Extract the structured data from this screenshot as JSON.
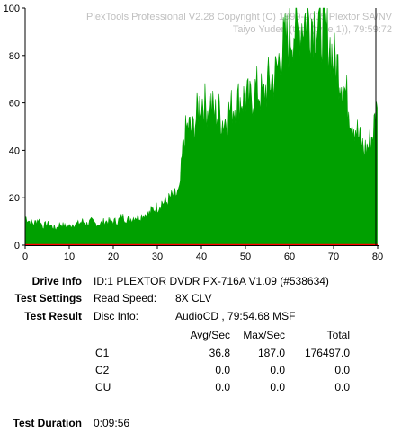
{
  "chart_data": {
    "type": "area",
    "title": "PlexTools Professional V2.28 Copyright (C) 1999-2005 Plextor SA/NV",
    "subtitle": "Taiyo Yuden (typ. (type 1)), 79:59:72",
    "x_ticks": [
      "0",
      "10",
      "20",
      "30",
      "40",
      "50",
      "60",
      "70",
      "80"
    ],
    "y_ticks": [
      "0",
      "20",
      "40",
      "60",
      "80",
      "100"
    ],
    "xlim": [
      0,
      80
    ],
    "ylim": [
      0,
      100
    ],
    "grid": false,
    "series": [
      {
        "name": "C1",
        "color": "#00a000",
        "x": [
          0,
          1,
          2,
          3,
          4,
          5,
          6,
          7,
          8,
          9,
          10,
          11,
          12,
          13,
          14,
          15,
          16,
          17,
          18,
          19,
          20,
          21,
          22,
          23,
          24,
          25,
          26,
          27,
          28,
          29,
          30,
          31,
          32,
          33,
          34,
          35,
          36,
          37,
          38,
          39,
          40,
          41,
          42,
          43,
          44,
          45,
          46,
          47,
          48,
          49,
          50,
          51,
          52,
          53,
          54,
          55,
          56,
          57,
          58,
          59,
          60,
          61,
          62,
          63,
          64,
          65,
          66,
          67,
          68,
          69,
          70,
          71,
          72,
          73,
          74,
          75,
          76,
          77,
          78,
          79,
          79.9
        ],
        "y": [
          12,
          10,
          9,
          11,
          8,
          9,
          8,
          7,
          9,
          8,
          8,
          9,
          9,
          10,
          9,
          10,
          9,
          9,
          10,
          10,
          10,
          10,
          12,
          11,
          11,
          12,
          12,
          13,
          13,
          15,
          16,
          18,
          18,
          20,
          21,
          22,
          45,
          50,
          48,
          55,
          62,
          58,
          60,
          55,
          56,
          52,
          55,
          58,
          60,
          62,
          62,
          60,
          65,
          65,
          62,
          68,
          70,
          72,
          82,
          85,
          88,
          92,
          90,
          95,
          96,
          96,
          94,
          92,
          90,
          86,
          78,
          75,
          70,
          62,
          55,
          50,
          44,
          40,
          42,
          48,
          58
        ]
      },
      {
        "name": "C2",
        "color": "#ff0000",
        "x": [
          0,
          80
        ],
        "y": [
          0,
          0
        ]
      }
    ],
    "end_marker_x": 80
  },
  "info": {
    "drive_label": "Drive Info",
    "drive_value": "ID:1 PLEXTOR DVDR PX-716A V1.09 (#538634)",
    "settings_label": "Test Settings",
    "settings_key": "Read Speed:",
    "settings_value": "8X CLV",
    "result_label": "Test Result",
    "result_key": "Disc Info:",
    "result_value": "AudioCD , 79:54.68 MSF",
    "duration_label": "Test Duration",
    "duration_value": "0:09:56"
  },
  "table": {
    "headers": [
      "Avg/Sec",
      "Max/Sec",
      "Total"
    ],
    "rows": [
      {
        "label": "C1",
        "values": [
          "36.8",
          "187.0",
          "176497.0"
        ]
      },
      {
        "label": "C2",
        "values": [
          "0.0",
          "0.0",
          "0.0"
        ]
      },
      {
        "label": "CU",
        "values": [
          "0.0",
          "0.0",
          "0.0"
        ]
      }
    ]
  }
}
